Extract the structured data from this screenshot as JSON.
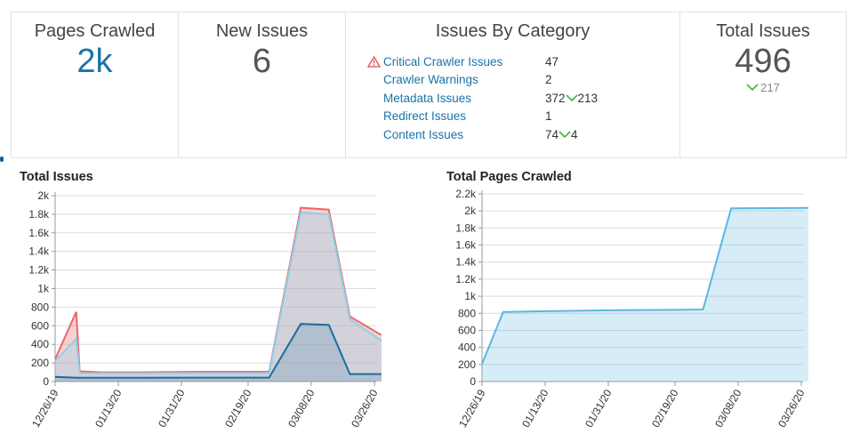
{
  "stats": {
    "pages_crawled": {
      "title": "Pages Crawled",
      "value": "2k"
    },
    "new_issues": {
      "title": "New Issues",
      "value": "6"
    },
    "issues_by_category": {
      "title": "Issues By Category",
      "items": [
        {
          "name": "Critical Crawler Issues",
          "count": "47",
          "delta": "",
          "warning": true
        },
        {
          "name": "Crawler Warnings",
          "count": "2",
          "delta": "",
          "warning": false
        },
        {
          "name": "Metadata Issues",
          "count": "372",
          "delta": "213",
          "warning": false
        },
        {
          "name": "Redirect Issues",
          "count": "1",
          "delta": "",
          "warning": false
        },
        {
          "name": "Content Issues",
          "count": "74",
          "delta": "4",
          "warning": false
        }
      ]
    },
    "total_issues": {
      "title": "Total Issues",
      "value": "496",
      "delta": "217"
    }
  },
  "colors": {
    "accent_blue": "#1a73a8",
    "delta_green": "#3cb63c",
    "warning_red": "#e05050",
    "area_fill": "#d6eef8",
    "area_line": "#5bb8df"
  },
  "chart_data": [
    {
      "type": "area",
      "title": "Total Issues",
      "x_ticks": [
        "12/26/19",
        "01/13/20",
        "01/31/20",
        "02/19/20",
        "03/08/20",
        "03/26/20"
      ],
      "y_ticks": [
        "0",
        "200",
        "400",
        "600",
        "800",
        "1k",
        "1.2k",
        "1.4k",
        "1.6k",
        "1.8k",
        "2k"
      ],
      "ylim": [
        0,
        2000
      ],
      "x": [
        "12/26/19",
        "01/01/20",
        "01/02/20",
        "01/08/20",
        "01/20/20",
        "02/05/20",
        "02/25/20",
        "03/05/20",
        "03/13/20",
        "03/19/20",
        "03/28/20"
      ],
      "series": [
        {
          "values": [
            240,
            750,
            110,
            100,
            100,
            105,
            105,
            1870,
            1850,
            700,
            500
          ],
          "color": "#e8686a"
        },
        {
          "values": [
            220,
            460,
            90,
            90,
            90,
            92,
            92,
            1820,
            1800,
            670,
            440
          ],
          "color": "#8fd0ea"
        },
        {
          "values": [
            50,
            40,
            40,
            40,
            40,
            42,
            42,
            620,
            610,
            80,
            80
          ],
          "color": "#1a6e9e"
        }
      ]
    },
    {
      "type": "area",
      "title": "Total Pages Crawled",
      "x_ticks": [
        "12/26/19",
        "01/13/20",
        "01/31/20",
        "02/19/20",
        "03/08/20",
        "03/26/20"
      ],
      "y_ticks": [
        "0",
        "200",
        "400",
        "600",
        "800",
        "1k",
        "1.2k",
        "1.4k",
        "1.6k",
        "1.8k",
        "2k",
        "2.2k"
      ],
      "ylim": [
        0,
        2200
      ],
      "x": [
        "12/26/19",
        "01/01/20",
        "01/13/20",
        "01/31/20",
        "02/19/20",
        "02/27/20",
        "03/06/20",
        "03/28/20"
      ],
      "series": [
        {
          "values": [
            205,
            815,
            825,
            835,
            840,
            845,
            2030,
            2035
          ],
          "color": "#5bb8df"
        }
      ]
    }
  ]
}
